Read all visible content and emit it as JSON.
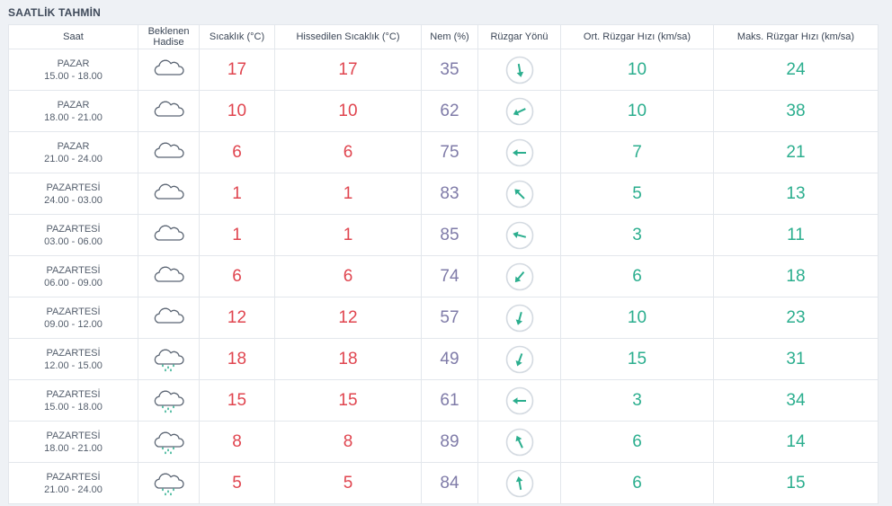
{
  "title": "SAATLİK TAHMİN",
  "headers": {
    "time": "Saat",
    "event_line1": "Beklenen",
    "event_line2": "Hadise",
    "temp": "Sıcaklık (°C)",
    "feels": "Hissedilen Sıcaklık (°C)",
    "humidity": "Nem (%)",
    "wind_dir": "Rüzgar Yönü",
    "avg_wind": "Ort. Rüzgar Hızı (km/sa)",
    "max_wind": "Maks. Rüzgar Hızı (km/sa)"
  },
  "colors": {
    "temp": "#e0454f",
    "humidity": "#7f7ba8",
    "wind": "#2bae8e"
  },
  "rows": [
    {
      "day": "PAZAR",
      "range": "15.00 - 18.00",
      "icon": "cloud-icon",
      "temp": "17",
      "feels": "17",
      "humidity": "35",
      "wind_dir_deg": 170,
      "avg": "10",
      "max": "24"
    },
    {
      "day": "PAZAR",
      "range": "18.00 - 21.00",
      "icon": "cloud-icon",
      "temp": "10",
      "feels": "10",
      "humidity": "62",
      "wind_dir_deg": 245,
      "avg": "10",
      "max": "38"
    },
    {
      "day": "PAZAR",
      "range": "21.00 - 24.00",
      "icon": "cloud-icon",
      "temp": "6",
      "feels": "6",
      "humidity": "75",
      "wind_dir_deg": 270,
      "avg": "7",
      "max": "21"
    },
    {
      "day": "PAZARTESİ",
      "range": "24.00 - 03.00",
      "icon": "cloud-icon",
      "temp": "1",
      "feels": "1",
      "humidity": "83",
      "wind_dir_deg": 315,
      "avg": "5",
      "max": "13"
    },
    {
      "day": "PAZARTESİ",
      "range": "03.00 - 06.00",
      "icon": "cloud-icon",
      "temp": "1",
      "feels": "1",
      "humidity": "85",
      "wind_dir_deg": 285,
      "avg": "3",
      "max": "11"
    },
    {
      "day": "PAZARTESİ",
      "range": "06.00 - 09.00",
      "icon": "cloud-icon",
      "temp": "6",
      "feels": "6",
      "humidity": "74",
      "wind_dir_deg": 220,
      "avg": "6",
      "max": "18"
    },
    {
      "day": "PAZARTESİ",
      "range": "09.00 - 12.00",
      "icon": "cloud-icon",
      "temp": "12",
      "feels": "12",
      "humidity": "57",
      "wind_dir_deg": 195,
      "avg": "10",
      "max": "23"
    },
    {
      "day": "PAZARTESİ",
      "range": "12.00 - 15.00",
      "icon": "rain-cloud-icon",
      "temp": "18",
      "feels": "18",
      "humidity": "49",
      "wind_dir_deg": 200,
      "avg": "15",
      "max": "31"
    },
    {
      "day": "PAZARTESİ",
      "range": "15.00 - 18.00",
      "icon": "rain-cloud-icon",
      "temp": "15",
      "feels": "15",
      "humidity": "61",
      "wind_dir_deg": 270,
      "avg": "3",
      "max": "34"
    },
    {
      "day": "PAZARTESİ",
      "range": "18.00 - 21.00",
      "icon": "rain-cloud-icon",
      "temp": "8",
      "feels": "8",
      "humidity": "89",
      "wind_dir_deg": 335,
      "avg": "6",
      "max": "14"
    },
    {
      "day": "PAZARTESİ",
      "range": "21.00 - 24.00",
      "icon": "rain-cloud-icon",
      "temp": "5",
      "feels": "5",
      "humidity": "84",
      "wind_dir_deg": 350,
      "avg": "6",
      "max": "15"
    }
  ]
}
